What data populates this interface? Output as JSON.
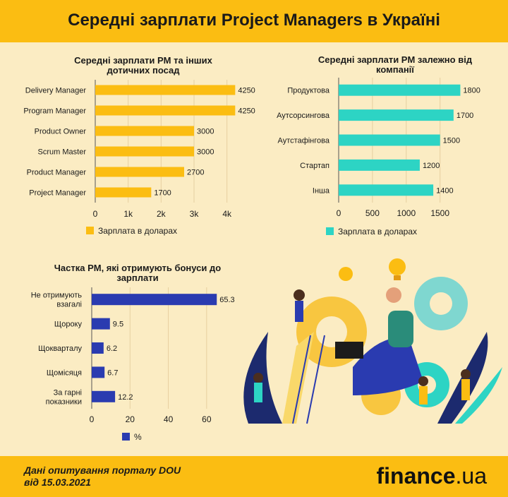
{
  "header": {
    "title": "Середні зарплати Project Managers в Україні"
  },
  "footer": {
    "source_line1": "Дані опитування порталу DOU",
    "source_line2": "від 15.03.2021",
    "brand_name": "finance",
    "brand_domain": ".ua"
  },
  "colors": {
    "orange": "#fbbd12",
    "teal": "#2dd4c4",
    "navy": "#2a3bb0",
    "background": "#fbecc3"
  },
  "chart_data": [
    {
      "type": "bar",
      "orientation": "horizontal",
      "title": "Середні зарплати PM та інших дотичних посад",
      "categories": [
        "Delivery Manager",
        "Program Manager",
        "Product Owner",
        "Scrum Master",
        "Product Manager",
        "Project Manager"
      ],
      "values": [
        4250,
        4250,
        3000,
        3000,
        2700,
        1700
      ],
      "data_labels": [
        "4250",
        "4250",
        "3000",
        "3000",
        "2700",
        "1700"
      ],
      "xlim": [
        0,
        4500
      ],
      "xticks": [
        0,
        1000,
        2000,
        3000,
        4000
      ],
      "xtick_labels": [
        "0",
        "1k",
        "2k",
        "3k",
        "4k"
      ],
      "legend": "Зарплата в доларах",
      "legend_position": "bottom",
      "grid": true,
      "color": "#fbbd12"
    },
    {
      "type": "bar",
      "orientation": "horizontal",
      "title": "Середні зарплати PM залежно від компанії",
      "categories": [
        "Продуктова",
        "Аутсорсингова",
        "Аутстафінгова",
        "Стартап",
        "Інша"
      ],
      "values": [
        1800,
        1700,
        1500,
        1200,
        1400
      ],
      "data_labels": [
        "1800",
        "1700",
        "1500",
        "1200",
        "1400"
      ],
      "xlim": [
        0,
        1900
      ],
      "xticks": [
        0,
        500,
        1000,
        1500
      ],
      "xtick_labels": [
        "0",
        "500",
        "1000",
        "1500"
      ],
      "legend": "Зарплата в доларах",
      "legend_position": "bottom",
      "grid": true,
      "color": "#2dd4c4"
    },
    {
      "type": "bar",
      "orientation": "horizontal",
      "title": "Частка PM, які отримують бонуси до зарплати",
      "categories": [
        [
          "Не отримують",
          "взагалі"
        ],
        [
          "Щороку"
        ],
        [
          "Щокварталу"
        ],
        [
          "Щомісяця"
        ],
        [
          "За гарні",
          "показники"
        ]
      ],
      "values": [
        65.3,
        9.5,
        6.2,
        6.7,
        12.2
      ],
      "data_labels": [
        "65.3",
        "9.5",
        "6.2",
        "6.7",
        "12.2"
      ],
      "xlim": [
        0,
        70
      ],
      "xticks": [
        0,
        20,
        40,
        60
      ],
      "xtick_labels": [
        "0",
        "20",
        "40",
        "60"
      ],
      "legend": "%",
      "legend_position": "bottom",
      "grid": true,
      "color": "#2a3bb0"
    }
  ]
}
